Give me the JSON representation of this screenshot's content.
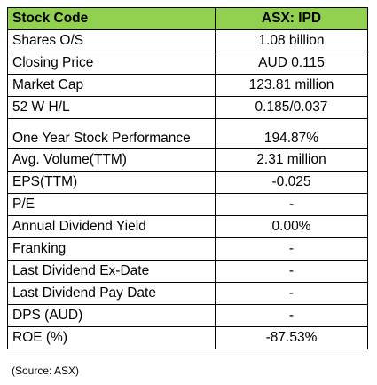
{
  "table": {
    "header": {
      "label": "Stock Code",
      "value": "ASX: IPD"
    },
    "colors": {
      "header_bg": "#92d050",
      "border": "#000000"
    },
    "rows": [
      {
        "label": "Shares O/S",
        "value": "1.08 billion"
      },
      {
        "label": "Closing Price",
        "value": "AUD 0.115"
      },
      {
        "label": "Market Cap",
        "value": "123.81 million"
      },
      {
        "label": "52 W H/L",
        "value": "0.185/0.037"
      },
      {
        "label": "One Year Stock Performance",
        "value": "194.87%"
      },
      {
        "label": "Avg. Volume(TTM)",
        "value": "2.31 million"
      },
      {
        "label": "EPS(TTM)",
        "value": "-0.025"
      },
      {
        "label": "P/E",
        "value": "-"
      },
      {
        "label": "Annual Dividend Yield",
        "value": "0.00%"
      },
      {
        "label": "Franking",
        "value": "-"
      },
      {
        "label": "Last Dividend Ex-Date",
        "value": "-"
      },
      {
        "label": "Last Dividend Pay Date",
        "value": "-"
      },
      {
        "label": "DPS (AUD)",
        "value": "-"
      },
      {
        "label": "ROE (%)",
        "value": "-87.53%"
      }
    ]
  },
  "source": "(Source: ASX)"
}
